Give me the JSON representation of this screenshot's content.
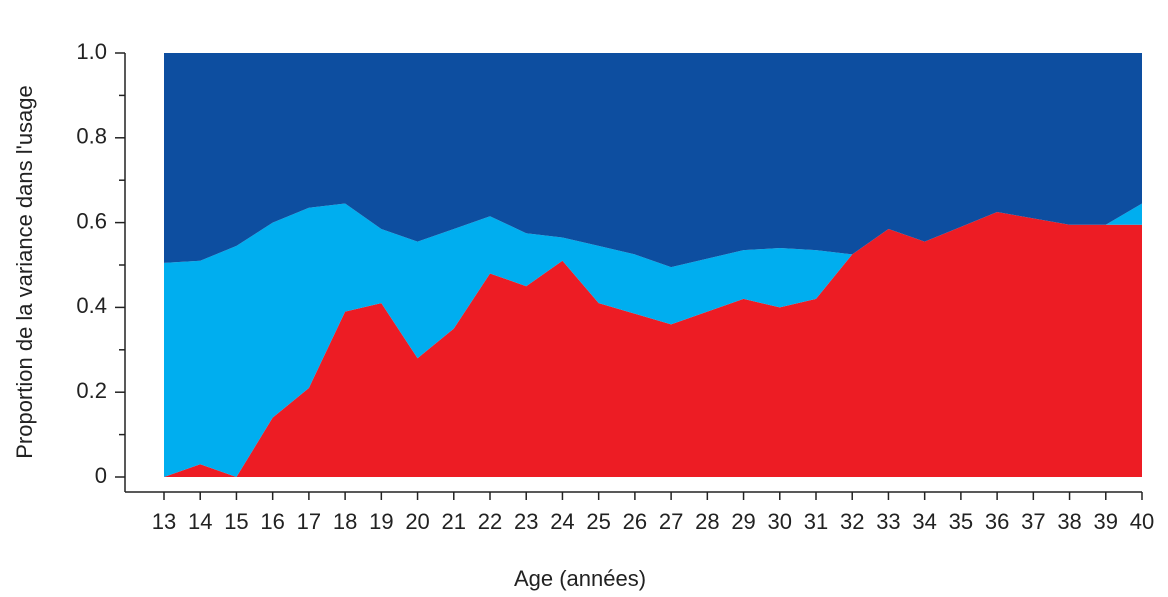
{
  "chart_data": {
    "type": "stacked_area",
    "xlabel": "Age (années)",
    "ylabel": "Proportion de la variance dans l'usage",
    "categories": [
      "13",
      "14",
      "15",
      "16",
      "17",
      "18",
      "19",
      "20",
      "21",
      "22",
      "23",
      "24",
      "25",
      "26",
      "27",
      "28",
      "29",
      "30",
      "31",
      "32",
      "33",
      "34",
      "35",
      "36",
      "37",
      "38",
      "39",
      "40"
    ],
    "series": [
      {
        "color": "#ed1c24",
        "values": [
          0,
          0.03,
          0,
          0.14,
          0.21,
          0.39,
          0.41,
          0.28,
          0.35,
          0.48,
          0.45,
          0.51,
          0.41,
          0.385,
          0.36,
          0.39,
          0.42,
          0.4,
          0.42,
          0.525,
          0.585,
          0.555,
          0.59,
          0.625,
          0.61,
          0.595,
          0.595,
          0.595
        ]
      },
      {
        "color": "#00aeef",
        "values": [
          0.505,
          0.48,
          0.545,
          0.46,
          0.425,
          0.255,
          0.175,
          0.275,
          0.235,
          0.135,
          0.125,
          0.055,
          0.135,
          0.14,
          0.135,
          0.125,
          0.115,
          0.14,
          0.115,
          0,
          0,
          0,
          0,
          0,
          0,
          0,
          0,
          0.05
        ]
      },
      {
        "color": "#0d4ea0",
        "values": [
          0.495,
          0.49,
          0.455,
          0.4,
          0.365,
          0.355,
          0.415,
          0.445,
          0.415,
          0.385,
          0.425,
          0.435,
          0.455,
          0.475,
          0.505,
          0.485,
          0.465,
          0.46,
          0.465,
          0.475,
          0.415,
          0.445,
          0.41,
          0.375,
          0.39,
          0.405,
          0.405,
          0.355
        ]
      }
    ],
    "ylim": [
      0,
      1
    ],
    "yticks": [
      0,
      0.2,
      0.4,
      0.6,
      0.8,
      {
        "value": 1,
        "label": "1.0"
      }
    ],
    "yminorticks": [
      0.1,
      0.3,
      0.5,
      0.7,
      0.9
    ]
  }
}
